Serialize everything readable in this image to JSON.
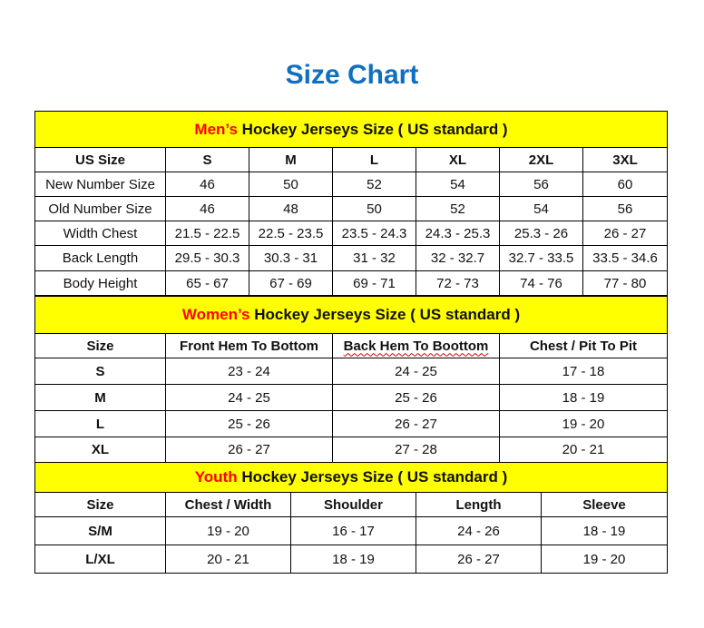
{
  "title": "Size Chart",
  "colors": {
    "title": "#0f6fc0",
    "section_bg": "#ffff00",
    "highlight": "#ff0000"
  },
  "men": {
    "highlight": "Men’s",
    "heading": " Hockey Jerseys Size ( US standard )",
    "header": [
      "US Size",
      "S",
      "M",
      "L",
      "XL",
      "2XL",
      "3XL"
    ],
    "rows": [
      [
        "New Number Size",
        "46",
        "50",
        "52",
        "54",
        "56",
        "60"
      ],
      [
        "Old Number Size",
        "46",
        "48",
        "50",
        "52",
        "54",
        "56"
      ],
      [
        "Width Chest",
        "21.5 - 22.5",
        "22.5 - 23.5",
        "23.5 - 24.3",
        "24.3 - 25.3",
        "25.3 - 26",
        "26 - 27"
      ],
      [
        "Back Length",
        "29.5 - 30.3",
        "30.3 - 31",
        "31 - 32",
        "32 - 32.7",
        "32.7 - 33.5",
        "33.5 - 34.6"
      ],
      [
        "Body Height",
        "65 - 67",
        "67 - 69",
        "69 - 71",
        "72 - 73",
        "74 - 76",
        "77 - 80"
      ]
    ]
  },
  "women": {
    "highlight": "Women’s",
    "heading": " Hockey Jerseys Size ( US standard )",
    "header": [
      "Size",
      "Front Hem To Bottom",
      "Back Hem To Boottom",
      "Chest / Pit To Pit"
    ],
    "rows": [
      [
        "S",
        "23 - 24",
        "24 - 25",
        "17 - 18"
      ],
      [
        "M",
        "24 - 25",
        "25 - 26",
        "18 - 19"
      ],
      [
        "L",
        "25 - 26",
        "26 - 27",
        "19 - 20"
      ],
      [
        "XL",
        "26 - 27",
        "27 - 28",
        "20 - 21"
      ]
    ]
  },
  "youth": {
    "highlight": "Youth",
    "heading": " Hockey Jerseys Size ( US standard )",
    "header": [
      "Size",
      "Chest / Width",
      "Shoulder",
      "Length",
      "Sleeve"
    ],
    "rows": [
      [
        "S/M",
        "19 - 20",
        "16 - 17",
        "24 - 26",
        "18 - 19"
      ],
      [
        "L/XL",
        "20 - 21",
        "18 - 19",
        "26 - 27",
        "19 - 20"
      ]
    ]
  }
}
